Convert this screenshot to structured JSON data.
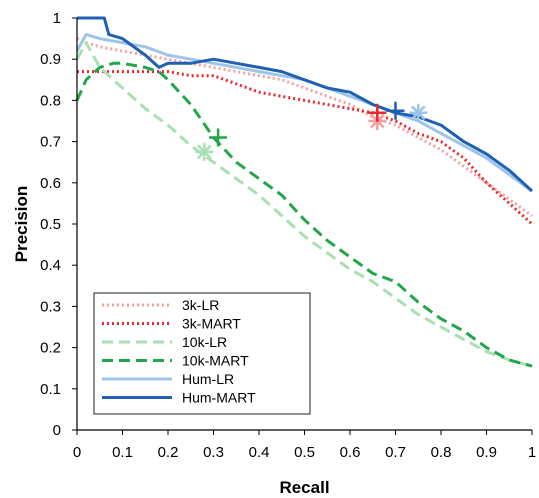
{
  "chart_data": {
    "type": "line",
    "title": "",
    "xlabel": "Recall",
    "ylabel": "Precision",
    "xlim": [
      0,
      1
    ],
    "ylim": [
      0,
      1
    ],
    "x_ticks": [
      "0",
      "0.1",
      "0.2",
      "0.3",
      "0.4",
      "0.5",
      "0.6",
      "0.7",
      "0.8",
      "0.9",
      "1"
    ],
    "y_ticks": [
      "0",
      "0.1",
      "0.2",
      "0.3",
      "0.4",
      "0.5",
      "0.6",
      "0.7",
      "0.8",
      "0.9",
      "1"
    ],
    "grid": false,
    "legend_position": "bottom-left",
    "series": [
      {
        "name": "3k-LR",
        "color": "#f4a0a0",
        "style": "dotted",
        "x": [
          0,
          0.02,
          0.05,
          0.1,
          0.15,
          0.2,
          0.25,
          0.3,
          0.35,
          0.4,
          0.45,
          0.5,
          0.55,
          0.6,
          0.65,
          0.7,
          0.75,
          0.8,
          0.85,
          0.9,
          0.95,
          1.0
        ],
        "y": [
          0.95,
          0.94,
          0.93,
          0.92,
          0.91,
          0.9,
          0.89,
          0.88,
          0.87,
          0.86,
          0.85,
          0.83,
          0.81,
          0.79,
          0.76,
          0.74,
          0.71,
          0.68,
          0.64,
          0.6,
          0.56,
          0.52
        ],
        "marker": {
          "x": 0.66,
          "y": 0.75,
          "symbol": "asterisk"
        }
      },
      {
        "name": "3k-MART",
        "color": "#e8282b",
        "style": "dotted",
        "x": [
          0,
          0.05,
          0.1,
          0.15,
          0.2,
          0.25,
          0.3,
          0.35,
          0.4,
          0.45,
          0.5,
          0.55,
          0.6,
          0.65,
          0.7,
          0.75,
          0.8,
          0.85,
          0.9,
          0.95,
          1.0
        ],
        "y": [
          0.87,
          0.87,
          0.87,
          0.87,
          0.87,
          0.86,
          0.86,
          0.84,
          0.82,
          0.81,
          0.8,
          0.79,
          0.78,
          0.77,
          0.75,
          0.72,
          0.7,
          0.66,
          0.6,
          0.55,
          0.5
        ],
        "marker": {
          "x": 0.66,
          "y": 0.77,
          "symbol": "plus"
        }
      },
      {
        "name": "10k-LR",
        "color": "#a8dfb3",
        "style": "dashed",
        "x": [
          0,
          0.02,
          0.05,
          0.1,
          0.15,
          0.2,
          0.25,
          0.3,
          0.35,
          0.4,
          0.45,
          0.5,
          0.55,
          0.6,
          0.65,
          0.7,
          0.75,
          0.8,
          0.85,
          0.9,
          0.95,
          1.0
        ],
        "y": [
          0.9,
          0.94,
          0.88,
          0.83,
          0.78,
          0.74,
          0.69,
          0.65,
          0.61,
          0.57,
          0.52,
          0.47,
          0.43,
          0.39,
          0.36,
          0.32,
          0.28,
          0.25,
          0.22,
          0.19,
          0.17,
          0.155
        ],
        "marker": {
          "x": 0.28,
          "y": 0.675,
          "symbol": "asterisk"
        }
      },
      {
        "name": "10k-MART",
        "color": "#22a64a",
        "style": "dashed",
        "x": [
          0,
          0.02,
          0.05,
          0.08,
          0.1,
          0.15,
          0.18,
          0.2,
          0.25,
          0.3,
          0.35,
          0.4,
          0.45,
          0.5,
          0.55,
          0.6,
          0.65,
          0.7,
          0.75,
          0.8,
          0.85,
          0.9,
          0.95,
          1.0
        ],
        "y": [
          0.8,
          0.85,
          0.88,
          0.89,
          0.89,
          0.88,
          0.87,
          0.85,
          0.79,
          0.71,
          0.65,
          0.61,
          0.57,
          0.51,
          0.46,
          0.42,
          0.38,
          0.36,
          0.31,
          0.27,
          0.24,
          0.2,
          0.17,
          0.155
        ],
        "marker": {
          "x": 0.31,
          "y": 0.71,
          "symbol": "plus"
        }
      },
      {
        "name": "Hum-LR",
        "color": "#9ec5e8",
        "style": "solid",
        "x": [
          0,
          0.02,
          0.05,
          0.1,
          0.15,
          0.2,
          0.25,
          0.3,
          0.35,
          0.4,
          0.45,
          0.5,
          0.55,
          0.6,
          0.65,
          0.7,
          0.75,
          0.8,
          0.85,
          0.9,
          0.95,
          1.0
        ],
        "y": [
          0.92,
          0.96,
          0.95,
          0.94,
          0.93,
          0.91,
          0.9,
          0.89,
          0.88,
          0.87,
          0.86,
          0.85,
          0.83,
          0.81,
          0.79,
          0.77,
          0.75,
          0.72,
          0.69,
          0.66,
          0.62,
          0.58
        ],
        "marker": {
          "x": 0.75,
          "y": 0.77,
          "symbol": "asterisk"
        }
      },
      {
        "name": "Hum-MART",
        "color": "#1f5fb4",
        "style": "solid",
        "x": [
          0,
          0.01,
          0.06,
          0.07,
          0.1,
          0.15,
          0.18,
          0.2,
          0.25,
          0.3,
          0.35,
          0.4,
          0.45,
          0.5,
          0.55,
          0.6,
          0.65,
          0.7,
          0.75,
          0.8,
          0.85,
          0.9,
          0.95,
          1.0
        ],
        "y": [
          1.0,
          1.0,
          1.0,
          0.96,
          0.95,
          0.91,
          0.88,
          0.89,
          0.89,
          0.9,
          0.89,
          0.88,
          0.87,
          0.85,
          0.83,
          0.82,
          0.79,
          0.77,
          0.76,
          0.74,
          0.7,
          0.67,
          0.63,
          0.58
        ],
        "marker": {
          "x": 0.7,
          "y": 0.775,
          "symbol": "plus"
        }
      }
    ]
  }
}
